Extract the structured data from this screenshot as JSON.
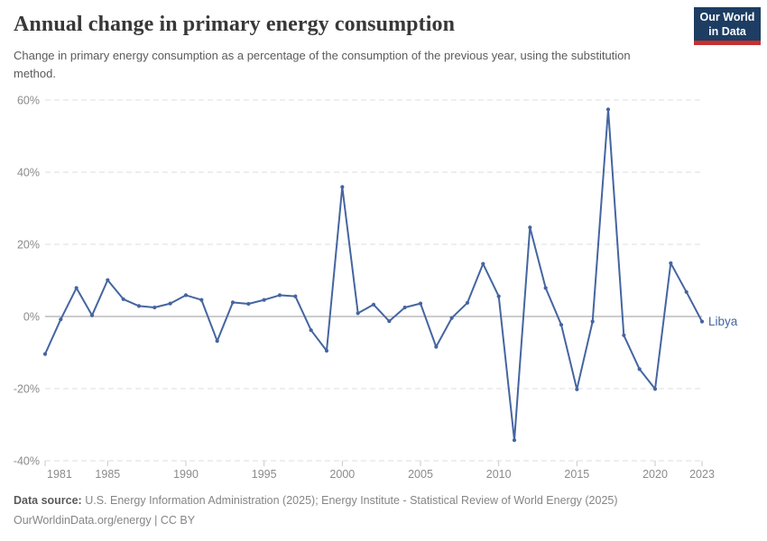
{
  "header": {
    "title": "Annual change in primary energy consumption",
    "subtitle": "Change in primary energy consumption as a percentage of the consumption of the previous year, using the substitution method.",
    "logo_line1": "Our World",
    "logo_line2": "in Data"
  },
  "chart_data": {
    "type": "line",
    "title": "Annual change in primary energy consumption",
    "xlabel": "",
    "ylabel": "",
    "xlim": [
      1981,
      2023
    ],
    "ylim": [
      -40,
      60
    ],
    "y_ticks": [
      60,
      40,
      20,
      0,
      -20,
      -40
    ],
    "y_tick_suffix": "%",
    "x_ticks": [
      1981,
      1985,
      1990,
      1995,
      2000,
      2005,
      2010,
      2015,
      2020,
      2023
    ],
    "grid": "horizontal-dashed, zero-line-solid",
    "legend_position": "end-of-line-label",
    "series": [
      {
        "name": "Libya",
        "x": [
          1981,
          1982,
          1983,
          1984,
          1985,
          1986,
          1987,
          1988,
          1989,
          1990,
          1991,
          1992,
          1993,
          1994,
          1995,
          1996,
          1997,
          1998,
          1999,
          2000,
          2001,
          2002,
          2003,
          2004,
          2005,
          2006,
          2007,
          2008,
          2009,
          2010,
          2011,
          2012,
          2013,
          2014,
          2015,
          2016,
          2017,
          2018,
          2019,
          2020,
          2021,
          2022,
          2023
        ],
        "values": [
          -10.4,
          -0.8,
          7.9,
          0.3,
          10.1,
          4.8,
          2.9,
          2.5,
          3.6,
          5.9,
          4.6,
          -6.8,
          3.9,
          3.5,
          4.6,
          5.9,
          5.6,
          -3.8,
          -9.5,
          35.9,
          0.9,
          3.3,
          -1.3,
          2.5,
          3.6,
          -8.4,
          -0.4,
          3.8,
          14.6,
          5.6,
          -34.3,
          24.7,
          7.9,
          -2.3,
          -20.2,
          -1.4,
          57.4,
          -5.2,
          -14.6,
          -20.1,
          14.8,
          6.8,
          -1.4
        ]
      }
    ],
    "end_label": "Libya"
  },
  "footer": {
    "datasource_label": "Data source:",
    "datasource_text": " U.S. Energy Information Administration (2025); Energy Institute - Statistical Review of World Energy (2025)",
    "link_text": "OurWorldinData.org/energy",
    "separator": " | ",
    "license_text": "CC BY"
  },
  "colors": {
    "line": "#4565a0",
    "grid": "#dcdcdc",
    "zero_line": "#9a9a9a",
    "axis_text": "#8b8b8b",
    "tick": "#c8c8c8",
    "logo_bg": "#1d3d63",
    "logo_bar": "#c7302f"
  }
}
